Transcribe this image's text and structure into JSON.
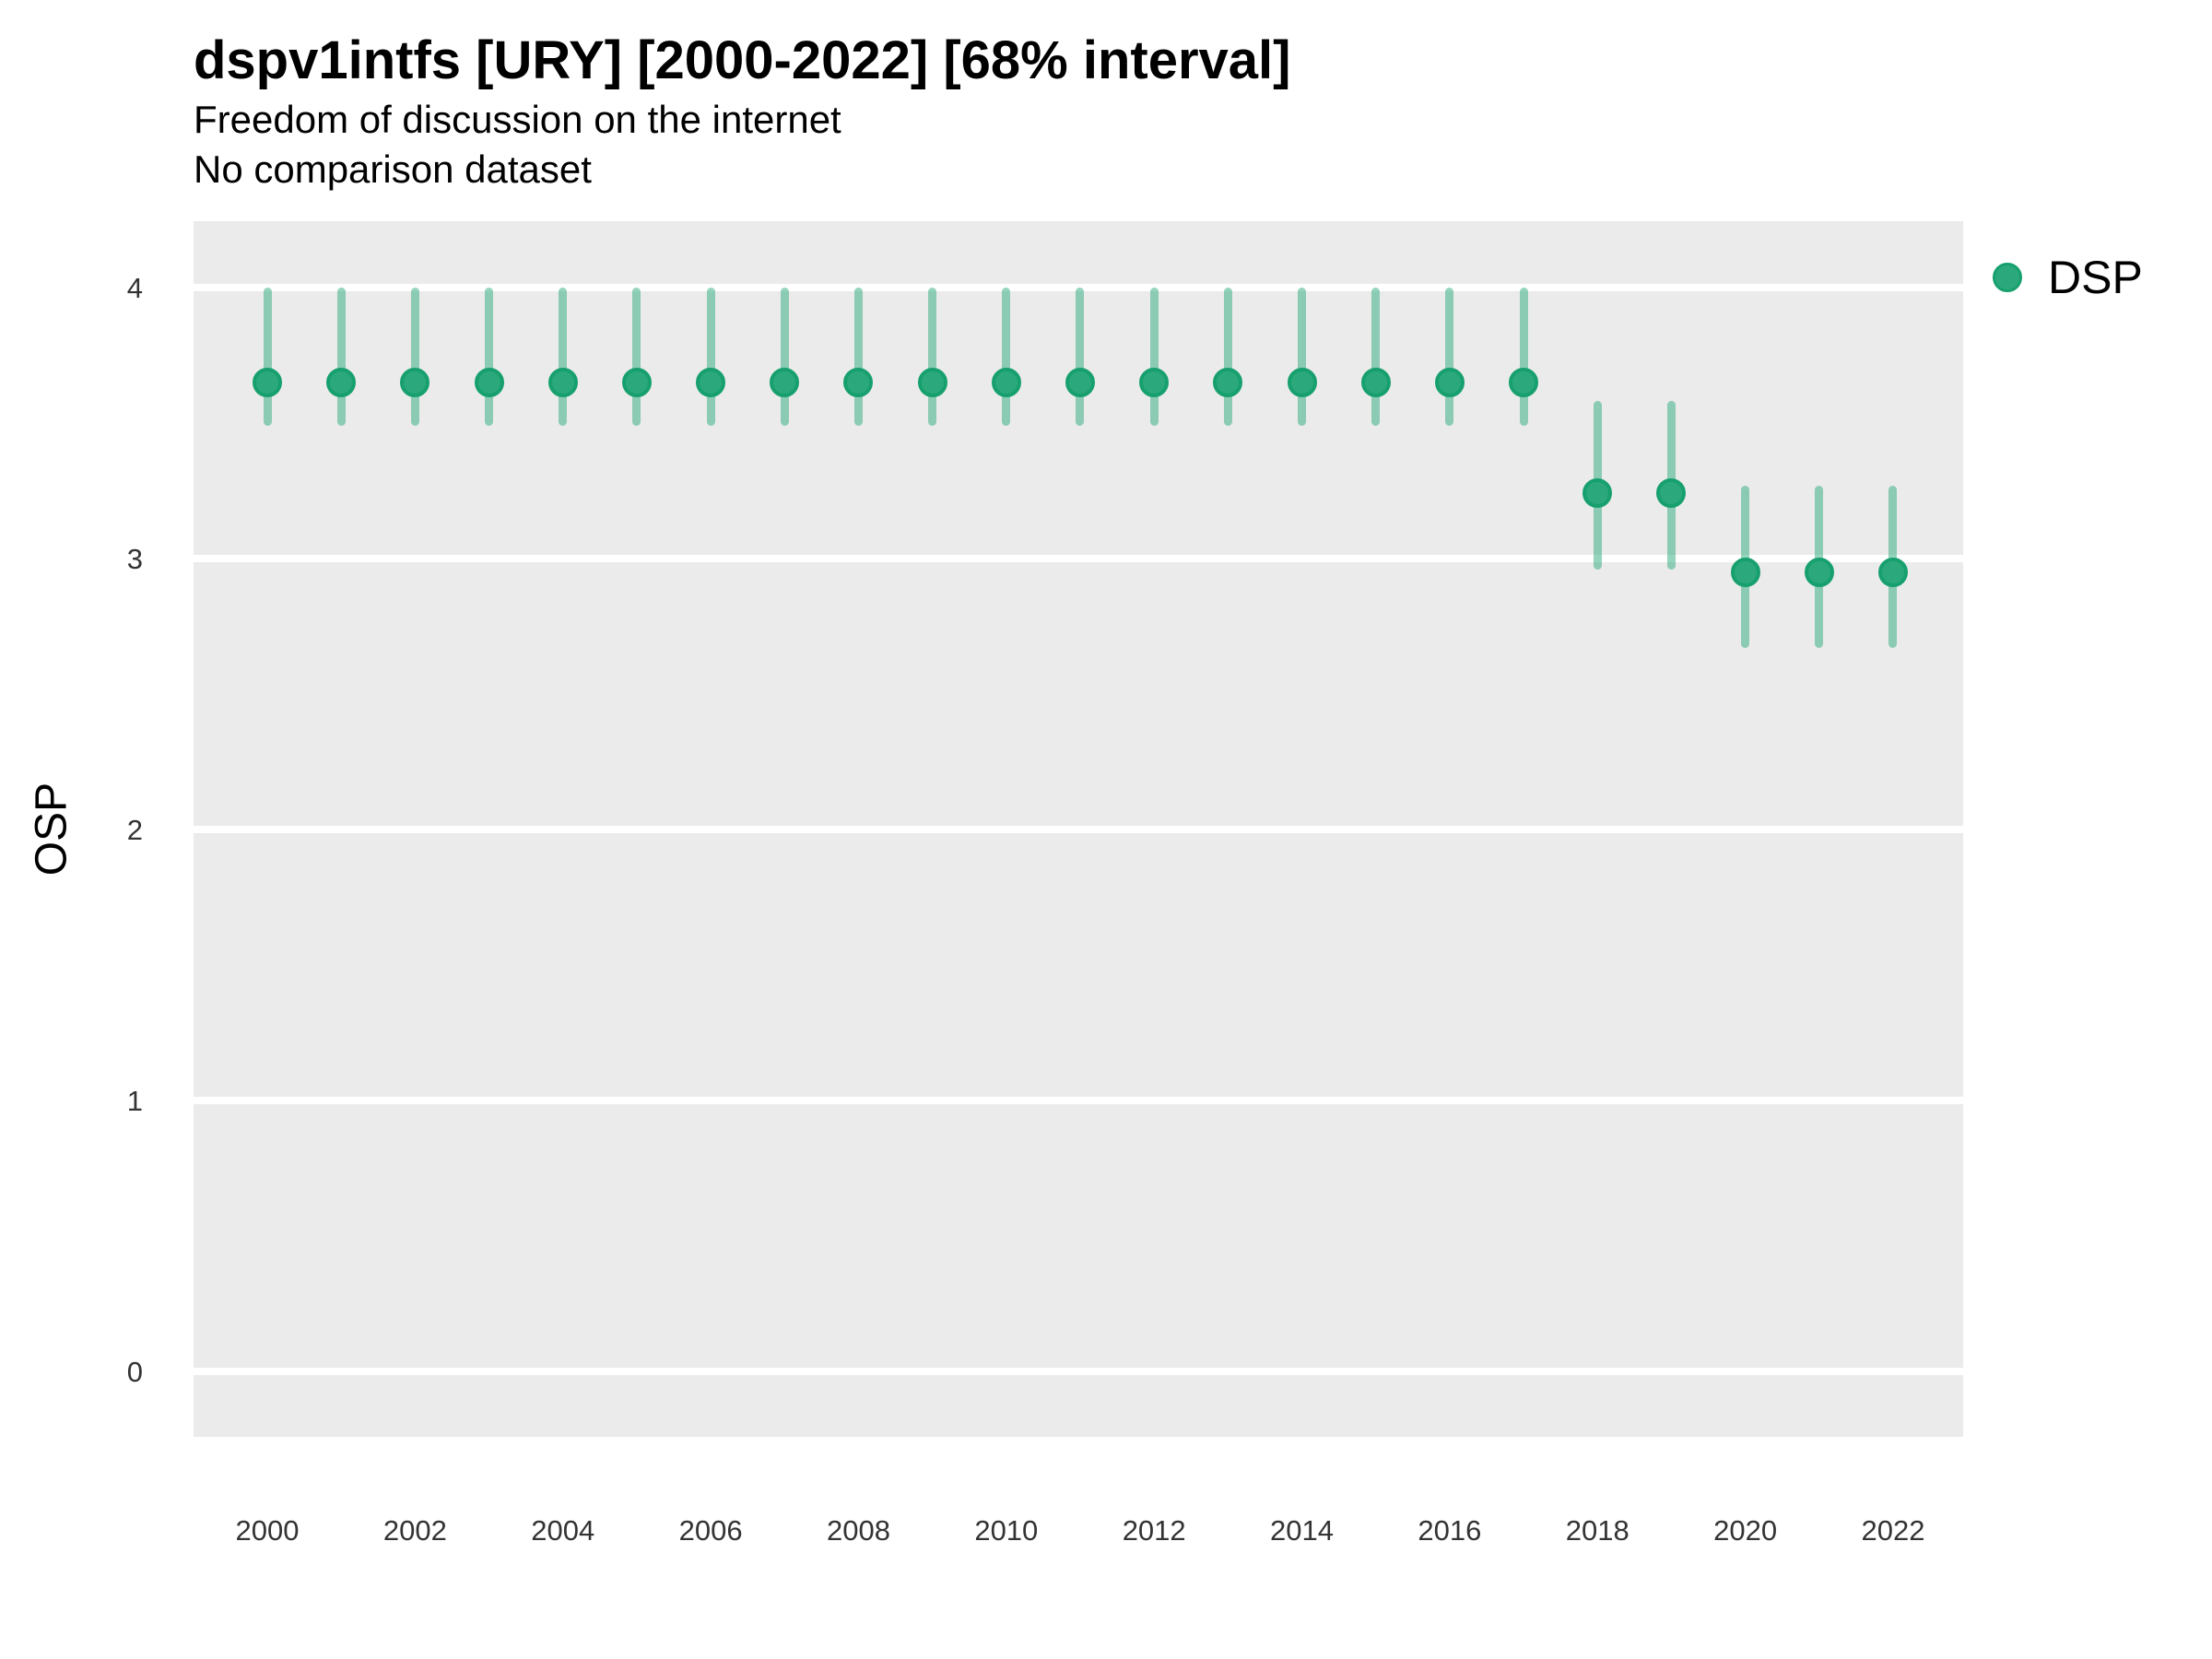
{
  "header": {
    "title": "dspv1intfs [URY] [2000-2022] [68% interval]",
    "subtitle": "Freedom of discussion on the internet",
    "subtitle2": "No comparison dataset"
  },
  "colors": {
    "point_fill": "#2CA97C",
    "point_stroke": "#17A06E",
    "interval_bar": "rgba(44,169,124,0.5)",
    "panel_background": "#EBEBEB",
    "gridline": "#FFFFFF"
  },
  "chart_data": {
    "type": "scatter",
    "title": "dspv1intfs [URY] [2000-2022] [68% interval]",
    "subtitle": "Freedom of discussion on the internet",
    "note": "No comparison dataset",
    "xlabel": "",
    "ylabel": "OSP",
    "ylim": [
      0,
      4
    ],
    "xlim": [
      2000,
      2022
    ],
    "yticks": [
      4,
      3,
      2,
      1,
      0
    ],
    "xticks": [
      2000,
      2002,
      2004,
      2006,
      2008,
      2010,
      2012,
      2014,
      2016,
      2018,
      2020,
      2022
    ],
    "grid": "horizontal major gridlines, white on gray panel",
    "legend_position": "right-top",
    "interval_level": "68%",
    "series": [
      {
        "name": "DSP",
        "color": "#2CA97C",
        "points": [
          {
            "x": 2000,
            "y": 3.65,
            "lo": 3.49,
            "hi": 4.0
          },
          {
            "x": 2001,
            "y": 3.65,
            "lo": 3.49,
            "hi": 4.0
          },
          {
            "x": 2002,
            "y": 3.65,
            "lo": 3.49,
            "hi": 4.0
          },
          {
            "x": 2003,
            "y": 3.65,
            "lo": 3.49,
            "hi": 4.0
          },
          {
            "x": 2004,
            "y": 3.65,
            "lo": 3.49,
            "hi": 4.0
          },
          {
            "x": 2005,
            "y": 3.65,
            "lo": 3.49,
            "hi": 4.0
          },
          {
            "x": 2006,
            "y": 3.65,
            "lo": 3.49,
            "hi": 4.0
          },
          {
            "x": 2007,
            "y": 3.65,
            "lo": 3.49,
            "hi": 4.0
          },
          {
            "x": 2008,
            "y": 3.65,
            "lo": 3.49,
            "hi": 4.0
          },
          {
            "x": 2009,
            "y": 3.65,
            "lo": 3.49,
            "hi": 4.0
          },
          {
            "x": 2010,
            "y": 3.65,
            "lo": 3.49,
            "hi": 4.0
          },
          {
            "x": 2011,
            "y": 3.65,
            "lo": 3.49,
            "hi": 4.0
          },
          {
            "x": 2012,
            "y": 3.65,
            "lo": 3.49,
            "hi": 4.0
          },
          {
            "x": 2013,
            "y": 3.65,
            "lo": 3.49,
            "hi": 4.0
          },
          {
            "x": 2014,
            "y": 3.65,
            "lo": 3.49,
            "hi": 4.0
          },
          {
            "x": 2015,
            "y": 3.65,
            "lo": 3.49,
            "hi": 4.0
          },
          {
            "x": 2016,
            "y": 3.65,
            "lo": 3.49,
            "hi": 4.0
          },
          {
            "x": 2017,
            "y": 3.65,
            "lo": 3.49,
            "hi": 4.0
          },
          {
            "x": 2018,
            "y": 3.24,
            "lo": 2.96,
            "hi": 3.58
          },
          {
            "x": 2019,
            "y": 3.24,
            "lo": 2.96,
            "hi": 3.58
          },
          {
            "x": 2020,
            "y": 2.95,
            "lo": 2.67,
            "hi": 3.27
          },
          {
            "x": 2021,
            "y": 2.95,
            "lo": 2.67,
            "hi": 3.27
          },
          {
            "x": 2022,
            "y": 2.95,
            "lo": 2.67,
            "hi": 3.27
          }
        ]
      }
    ]
  }
}
